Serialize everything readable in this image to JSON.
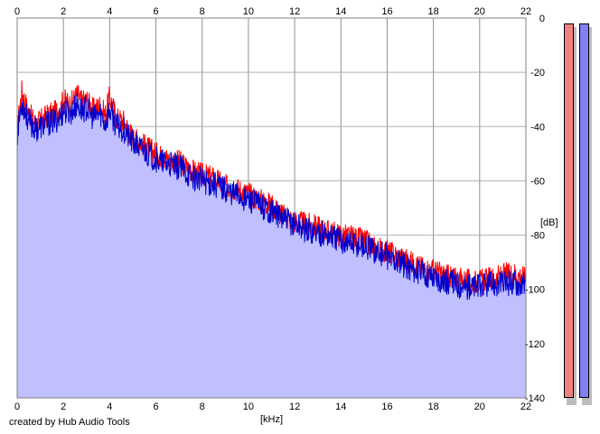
{
  "chart_data": {
    "type": "area",
    "title": "",
    "xlabel": "[kHz]",
    "ylabel": "[dB]",
    "xlim": [
      0,
      22
    ],
    "ylim": [
      -140,
      0
    ],
    "x_ticks": [
      0,
      2,
      4,
      6,
      8,
      10,
      12,
      14,
      16,
      18,
      20,
      22
    ],
    "y_ticks": [
      0,
      -20,
      -40,
      -60,
      -80,
      -100,
      -120,
      -140
    ],
    "grid": true,
    "fill_color": "#c0c0ff",
    "background": "#ffffff",
    "series": [
      {
        "channel": "left",
        "color": "#ff0000",
        "x": [
          0,
          0.2,
          0.5,
          0.8,
          1.0,
          1.3,
          1.6,
          1.9,
          2.0,
          2.3,
          2.6,
          2.8,
          3.0,
          3.3,
          3.6,
          3.8,
          4.0,
          4.3,
          4.6,
          5.0,
          5.5,
          6.0,
          6.5,
          7.0,
          7.5,
          8.0,
          8.5,
          9.0,
          9.5,
          10.0,
          10.5,
          11.0,
          11.5,
          12.0,
          12.5,
          13.0,
          13.5,
          14.0,
          14.5,
          15.0,
          15.5,
          16.0,
          16.5,
          17.0,
          17.5,
          18.0,
          18.5,
          19.0,
          19.5,
          20.0,
          20.5,
          21.0,
          21.5,
          22.0
        ],
        "y": [
          -40,
          -26,
          -34,
          -38,
          -37,
          -35,
          -34,
          -32,
          -29,
          -31,
          -27,
          -30,
          -29,
          -33,
          -31,
          -35,
          -28,
          -36,
          -37,
          -43,
          -46,
          -49,
          -51,
          -52,
          -55,
          -57,
          -58,
          -61,
          -62,
          -64,
          -66,
          -68,
          -72,
          -74,
          -75,
          -76,
          -78,
          -79,
          -80,
          -81,
          -84,
          -85,
          -87,
          -89,
          -91,
          -92,
          -94,
          -95,
          -96,
          -96,
          -95,
          -94,
          -93,
          -95
        ]
      },
      {
        "channel": "right",
        "color": "#0000cc",
        "x": [
          0,
          0.2,
          0.5,
          0.8,
          1.0,
          1.3,
          1.6,
          1.9,
          2.0,
          2.3,
          2.6,
          2.8,
          3.0,
          3.3,
          3.6,
          3.8,
          4.0,
          4.3,
          4.6,
          5.0,
          5.5,
          6.0,
          6.5,
          7.0,
          7.5,
          8.0,
          8.5,
          9.0,
          9.5,
          10.0,
          10.5,
          11.0,
          11.5,
          12.0,
          12.5,
          13.0,
          13.5,
          14.0,
          14.5,
          15.0,
          15.5,
          16.0,
          16.5,
          17.0,
          17.5,
          18.0,
          18.5,
          19.0,
          19.5,
          20.0,
          20.5,
          21.0,
          21.5,
          22.0
        ],
        "y": [
          -42,
          -30,
          -37,
          -40,
          -39,
          -38,
          -37,
          -35,
          -33,
          -34,
          -31,
          -33,
          -32,
          -36,
          -34,
          -38,
          -33,
          -39,
          -40,
          -45,
          -48,
          -51,
          -53,
          -54,
          -57,
          -59,
          -60,
          -62,
          -64,
          -66,
          -68,
          -70,
          -73,
          -75,
          -77,
          -78,
          -79,
          -81,
          -82,
          -83,
          -85,
          -87,
          -89,
          -91,
          -93,
          -94,
          -96,
          -97,
          -98,
          -98,
          -97,
          -97,
          -96,
          -98
        ]
      }
    ],
    "level_meters": [
      {
        "channel": "left",
        "color": "#f08080",
        "level": "full"
      },
      {
        "channel": "right",
        "color": "#8080f0",
        "level": "full"
      }
    ]
  },
  "footer": {
    "credit": "created by Hub Audio Tools"
  }
}
